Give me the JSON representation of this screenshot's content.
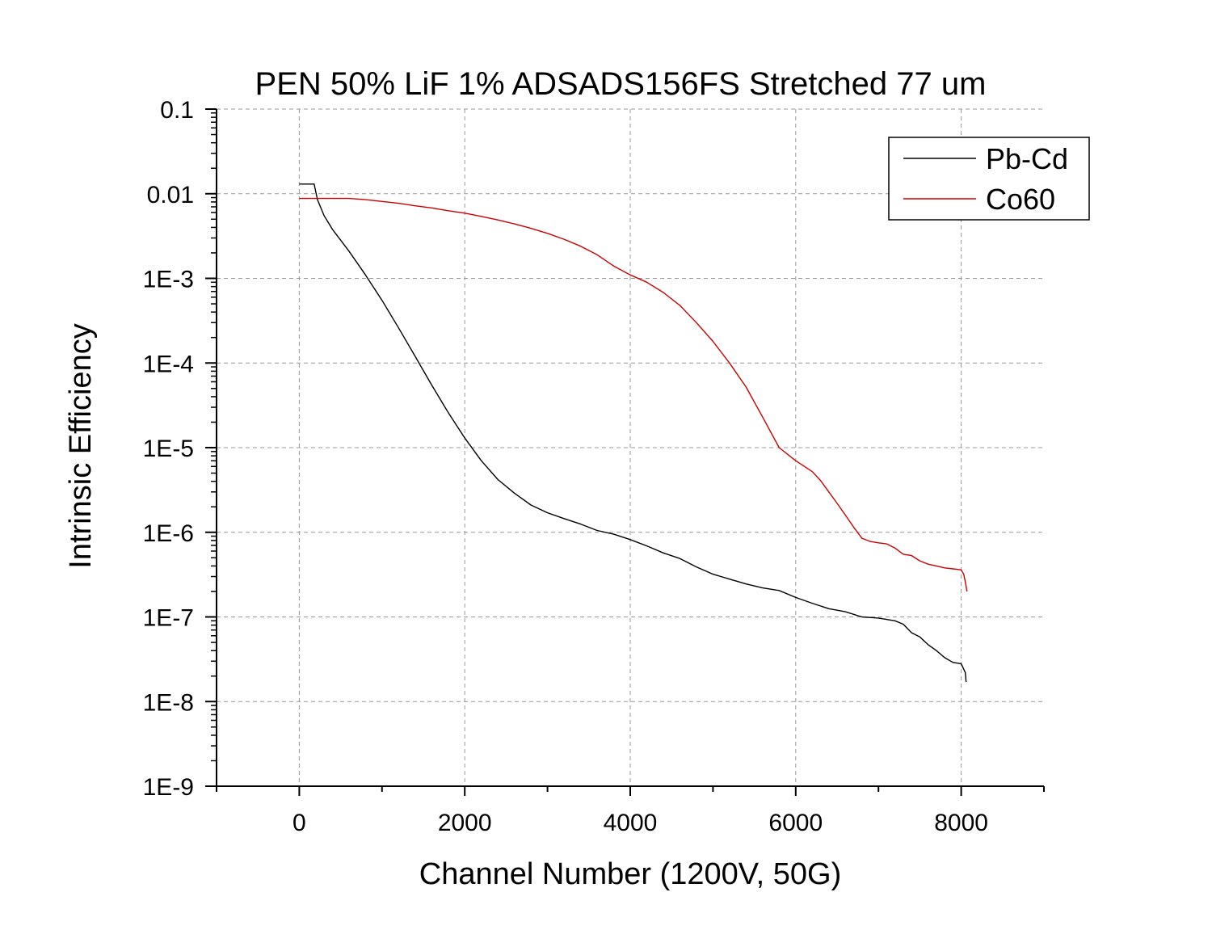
{
  "chart_data": {
    "type": "line",
    "title": "PEN 50% LiF 1% ADSADS156FS Stretched 77 um",
    "xlabel": "Channel Number (1200V, 50G)",
    "ylabel": "Intrinsic Efficiency",
    "xlim": [
      -1000,
      9000
    ],
    "ylim": [
      1e-09,
      0.1
    ],
    "y_scale": "log",
    "grid": true,
    "legend_position": "top-right",
    "x_ticks": [
      {
        "value": 0,
        "label": "0"
      },
      {
        "value": 2000,
        "label": "2000"
      },
      {
        "value": 4000,
        "label": "4000"
      },
      {
        "value": 6000,
        "label": "6000"
      },
      {
        "value": 8000,
        "label": "8000"
      }
    ],
    "y_ticks": [
      {
        "value": 0.1,
        "label": "0.1"
      },
      {
        "value": 0.01,
        "label": "0.01"
      },
      {
        "value": 0.001,
        "label": "1E-3"
      },
      {
        "value": 0.0001,
        "label": "1E-4"
      },
      {
        "value": 1e-05,
        "label": "1E-5"
      },
      {
        "value": 1e-06,
        "label": "1E-6"
      },
      {
        "value": 1e-07,
        "label": "1E-7"
      },
      {
        "value": 1e-08,
        "label": "1E-8"
      },
      {
        "value": 1e-09,
        "label": "1E-9"
      }
    ],
    "series": [
      {
        "name": "Pb-Cd",
        "color": "#000000",
        "x": [
          0,
          150,
          180,
          220,
          300,
          400,
          600,
          800,
          1000,
          1200,
          1400,
          1600,
          1800,
          2000,
          2200,
          2400,
          2600,
          2800,
          3000,
          3200,
          3400,
          3600,
          3800,
          4000,
          4200,
          4400,
          4600,
          4800,
          5000,
          5200,
          5400,
          5600,
          5800,
          6000,
          6200,
          6400,
          6600,
          6800,
          7000,
          7200,
          7300,
          7400,
          7500,
          7600,
          7700,
          7800,
          7900,
          8000,
          8050,
          8060
        ],
        "y": [
          0.013,
          0.013,
          0.013,
          0.0085,
          0.0055,
          0.0038,
          0.0021,
          0.0011,
          0.00055,
          0.00026,
          0.00012,
          5.5e-05,
          2.6e-05,
          1.3e-05,
          7e-06,
          4.2e-06,
          2.9e-06,
          2.1e-06,
          1.7e-06,
          1.45e-06,
          1.25e-06,
          1.05e-06,
          9.5e-07,
          8.2e-07,
          6.9e-07,
          5.7e-07,
          4.9e-07,
          3.9e-07,
          3.2e-07,
          2.8e-07,
          2.45e-07,
          2.2e-07,
          2.05e-07,
          1.7e-07,
          1.45e-07,
          1.25e-07,
          1.15e-07,
          1e-07,
          9.7e-08,
          9e-08,
          8.2e-08,
          6.5e-08,
          5.8e-08,
          4.7e-08,
          4e-08,
          3.3e-08,
          2.9e-08,
          2.8e-08,
          2.2e-08,
          1.7e-08
        ]
      },
      {
        "name": "Co60",
        "color": "#cc0000",
        "x": [
          0,
          200,
          400,
          600,
          800,
          1000,
          1200,
          1400,
          1600,
          1800,
          2000,
          2200,
          2400,
          2600,
          2800,
          3000,
          3200,
          3400,
          3600,
          3800,
          4000,
          4200,
          4400,
          4600,
          4800,
          5000,
          5200,
          5400,
          5600,
          5800,
          6000,
          6200,
          6300,
          6400,
          6500,
          6600,
          6700,
          6800,
          6900,
          7000,
          7100,
          7200,
          7300,
          7400,
          7500,
          7600,
          7700,
          7800,
          7900,
          8000,
          8030,
          8050,
          8070
        ],
        "y": [
          0.0088,
          0.0088,
          0.0088,
          0.0088,
          0.0085,
          0.0081,
          0.0077,
          0.0072,
          0.0068,
          0.0063,
          0.0059,
          0.0054,
          0.0049,
          0.0044,
          0.0039,
          0.0034,
          0.0029,
          0.0024,
          0.0019,
          0.0014,
          0.0011,
          0.0009,
          0.00068,
          0.00048,
          0.0003,
          0.00018,
          0.0001,
          5.2e-05,
          2.3e-05,
          1e-05,
          7e-06,
          5.2e-06,
          4.1e-06,
          3e-06,
          2.2e-06,
          1.6e-06,
          1.15e-06,
          8.5e-07,
          7.8e-07,
          7.5e-07,
          7.3e-07,
          6.5e-07,
          5.5e-07,
          5.3e-07,
          4.6e-07,
          4.2e-07,
          4e-07,
          3.8e-07,
          3.7e-07,
          3.6e-07,
          3.2e-07,
          2.6e-07,
          2e-07
        ]
      }
    ]
  }
}
